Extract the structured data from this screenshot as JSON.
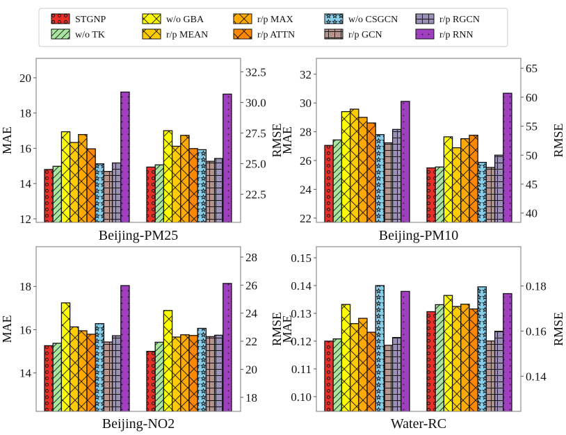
{
  "legend": [
    {
      "name": "STGNP",
      "color": "#e8302a",
      "hatch": "circles"
    },
    {
      "name": "w/o TK",
      "color": "#a8e6a0",
      "hatch": "diagonal"
    },
    {
      "name": "w/o GBA",
      "color": "#ffff00",
      "hatch": "cross"
    },
    {
      "name": "r/p MEAN",
      "color": "#ffcc00",
      "hatch": "cross"
    },
    {
      "name": "r/p MAX",
      "color": "#ffaa00",
      "hatch": "cross"
    },
    {
      "name": "r/p ATTN",
      "color": "#ff8800",
      "hatch": "cross"
    },
    {
      "name": "w/o CSGCN",
      "color": "#87ceeb",
      "hatch": "stars"
    },
    {
      "name": "r/p GCN",
      "color": "#b59490",
      "hatch": "grid"
    },
    {
      "name": "r/p RGCN",
      "color": "#9a90b8",
      "hatch": "grid"
    },
    {
      "name": "r/p RNN",
      "color": "#a040c0",
      "hatch": "dots"
    }
  ],
  "chart_data": [
    {
      "type": "bar",
      "title": "Beijing-PM25",
      "ylabel": "MAE",
      "y2label": "RMSE",
      "ylim": [
        11.8,
        21.1
      ],
      "yticks": [
        12,
        14,
        16,
        18,
        20
      ],
      "y2lim": [
        20.2,
        33.6
      ],
      "y2ticks": [
        "22.5",
        "25.0",
        "27.5",
        "30.0",
        "32.5"
      ],
      "mae": [
        14.8,
        14.98,
        16.94,
        16.33,
        16.78,
        15.97,
        15.12,
        14.69,
        15.17,
        19.19
      ],
      "rmse": [
        24.72,
        24.9,
        27.69,
        26.42,
        27.31,
        26.23,
        26.14,
        25.19,
        25.42,
        30.68
      ]
    },
    {
      "type": "bar",
      "title": "Beijing-PM10",
      "ylabel": "MAE",
      "y2label": "RMSE",
      "ylim": [
        21.7,
        33.1
      ],
      "yticks": [
        22,
        24,
        26,
        28,
        30,
        32
      ],
      "y2lim": [
        38.4,
        66.7
      ],
      "y2ticks": [
        "40",
        "45",
        "50",
        "55",
        "60",
        "65"
      ],
      "mae": [
        27.05,
        27.43,
        29.4,
        29.57,
        29.0,
        28.61,
        27.8,
        27.23,
        28.16,
        30.11
      ],
      "rmse": [
        47.8,
        47.96,
        53.16,
        51.28,
        52.84,
        53.44,
        48.76,
        47.88,
        50.0,
        60.68
      ]
    },
    {
      "type": "bar",
      "title": "Beijing-NO2",
      "ylabel": "MAE",
      "y2label": "RMSE",
      "ylim": [
        12.22,
        19.84
      ],
      "yticks": [
        14,
        16,
        18
      ],
      "y2lim": [
        17.0,
        28.74
      ],
      "y2ticks": [
        "18",
        "20",
        "22",
        "24",
        "26",
        "28"
      ],
      "mae": [
        15.26,
        15.37,
        17.24,
        16.13,
        15.95,
        15.79,
        16.28,
        15.43,
        15.72,
        18.04
      ],
      "rmse": [
        21.28,
        21.93,
        24.19,
        22.3,
        22.46,
        22.41,
        22.92,
        22.33,
        22.43,
        26.12
      ]
    },
    {
      "type": "bar",
      "title": "Water-RC",
      "ylabel": "MAE",
      "y2label": "RMSE",
      "ylim": [
        0.0947,
        0.154
      ],
      "yticks": [
        "0.10",
        "0.11",
        "0.12",
        "0.13",
        "0.14",
        "0.15"
      ],
      "y2lim": [
        0.1244,
        0.1974
      ],
      "y2ticks": [
        "0.14",
        "0.16",
        "0.18"
      ],
      "mae": [
        0.12,
        0.1208,
        0.1332,
        0.1263,
        0.1282,
        0.1232,
        0.14,
        0.1185,
        0.1213,
        0.1379
      ],
      "rmse": [
        0.1686,
        0.1717,
        0.1758,
        0.1709,
        0.1719,
        0.1698,
        0.1796,
        0.1556,
        0.1599,
        0.1766
      ]
    }
  ]
}
